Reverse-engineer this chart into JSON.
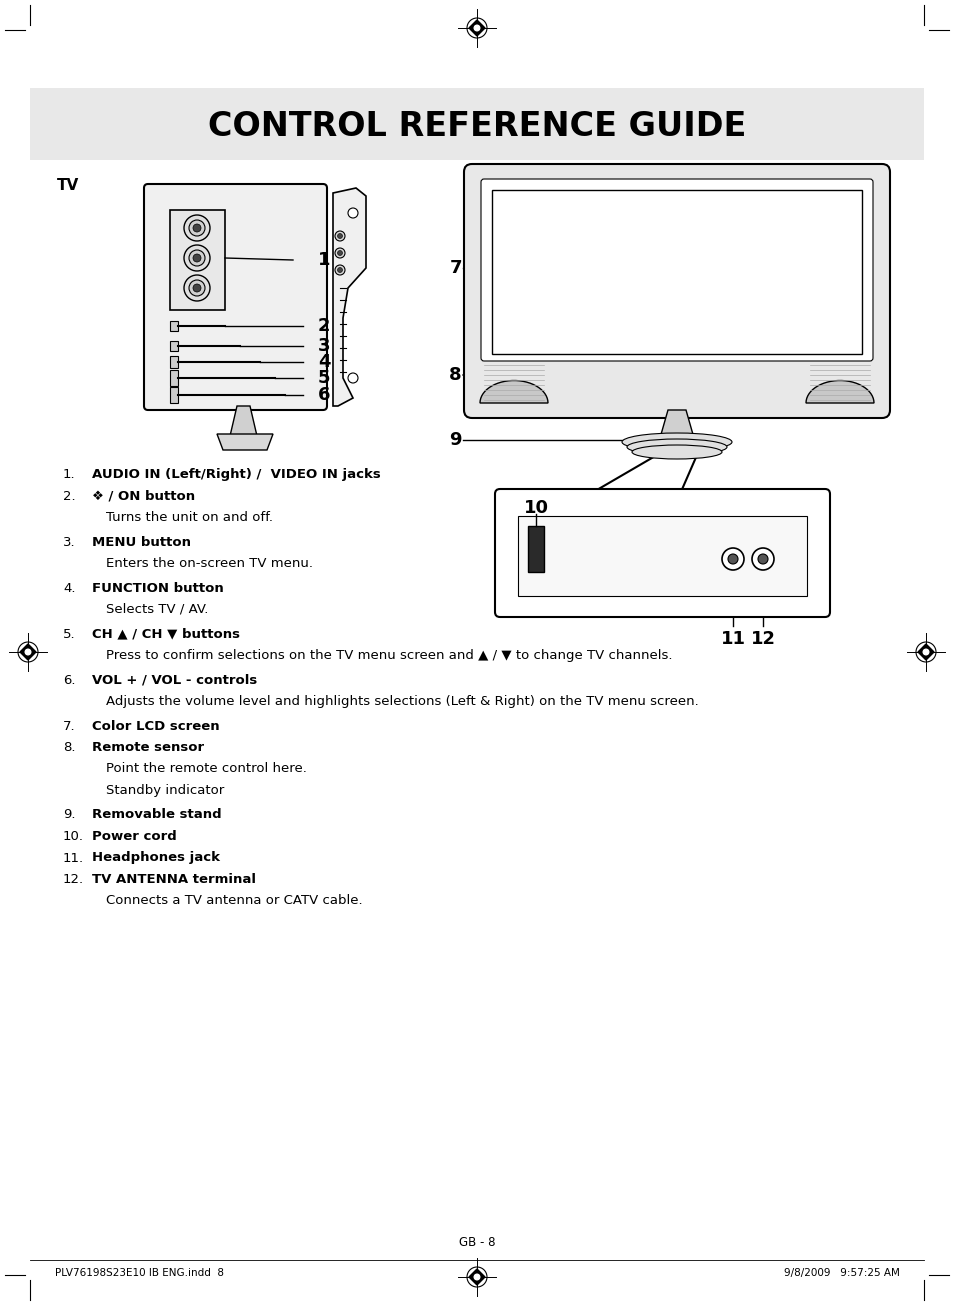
{
  "title": "CONTROL REFERENCE GUIDE",
  "title_fontsize": 22,
  "title_bg_color": "#e8e8e8",
  "page_bg_color": "#ffffff",
  "tv_label": "TV",
  "footer_left": "PLV76198S23E10 IB ENG.indd  8",
  "footer_center": "GB - 8",
  "footer_right": "9/8/2009   9:57:25 AM",
  "items": [
    {
      "num": "1.",
      "bold": "AUDIO IN (Left/Right) /  VIDEO IN jacks",
      "sub": ""
    },
    {
      "num": "2.",
      "bold": "❖ / ON button",
      "sub": "Turns the unit on and off."
    },
    {
      "num": "3.",
      "bold": "MENU button",
      "sub": "Enters the on-screen TV menu."
    },
    {
      "num": "4.",
      "bold": "FUNCTION button",
      "sub": "Selects TV / AV."
    },
    {
      "num": "5.",
      "bold": "CH ▲ / CH ▼ buttons",
      "sub": "Press to confirm selections on the TV menu screen and ▲ / ▼ to change TV channels."
    },
    {
      "num": "6.",
      "bold": "VOL + / VOL - controls",
      "sub": "Adjusts the volume level and highlights selections (Left & Right) on the TV menu screen."
    },
    {
      "num": "7.",
      "bold": "Color LCD screen",
      "sub": ""
    },
    {
      "num": "8.",
      "bold": "Remote sensor",
      "sub": "Point the remote control here.\nStandby indicator"
    },
    {
      "num": "9.",
      "bold": "Removable stand",
      "sub": ""
    },
    {
      "num": "10.",
      "bold": "Power cord",
      "sub": ""
    },
    {
      "num": "11.",
      "bold": "Headphones jack",
      "sub": ""
    },
    {
      "num": "12.",
      "bold": "TV ANTENNA terminal",
      "sub": "Connects a TV antenna or CATV cable."
    }
  ]
}
